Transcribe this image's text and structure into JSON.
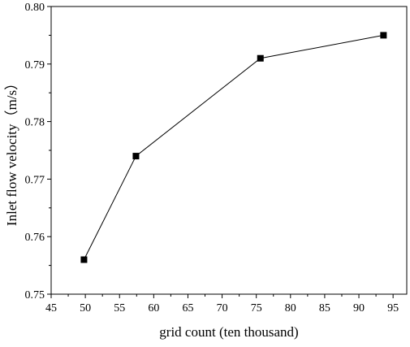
{
  "chart_data": {
    "type": "line",
    "title": "",
    "xlabel": "grid count (ten thousand)",
    "ylabel": "Inlet flow velocity（m/s）",
    "xlim": [
      45,
      97
    ],
    "ylim": [
      0.75,
      0.8
    ],
    "x_ticks": [
      45,
      50,
      55,
      60,
      65,
      70,
      75,
      80,
      85,
      90,
      95
    ],
    "y_ticks": [
      0.75,
      0.76,
      0.77,
      0.78,
      0.79,
      0.8
    ],
    "x_tick_labels": [
      "45",
      "50",
      "55",
      "60",
      "65",
      "70",
      "75",
      "80",
      "85",
      "90",
      "95"
    ],
    "y_tick_labels": [
      "0.75",
      "0.76",
      "0.77",
      "0.78",
      "0.79",
      "0.80"
    ],
    "grid": false,
    "series": [
      {
        "x": [
          49.8,
          57.4,
          75.6,
          93.6
        ],
        "y": [
          0.756,
          0.774,
          0.791,
          0.795
        ],
        "marker": "square",
        "color": "#000000"
      }
    ]
  }
}
